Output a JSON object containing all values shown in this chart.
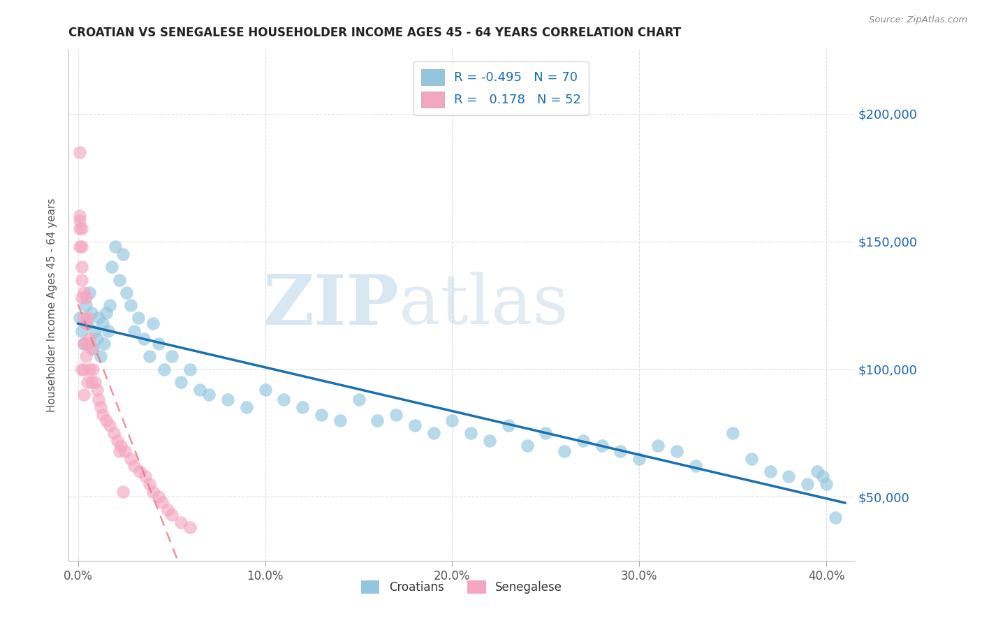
{
  "title": "CROATIAN VS SENEGALESE HOUSEHOLDER INCOME AGES 45 - 64 YEARS CORRELATION CHART",
  "source": "Source: ZipAtlas.com",
  "ylabel": "Householder Income Ages 45 - 64 years",
  "xlabel_ticks": [
    "0.0%",
    "10.0%",
    "20.0%",
    "30.0%",
    "40.0%"
  ],
  "xlabel_vals": [
    0.0,
    0.1,
    0.2,
    0.3,
    0.4
  ],
  "ylabel_ticks": [
    50000,
    100000,
    150000,
    200000
  ],
  "ylabel_labels": [
    "$50,000",
    "$100,000",
    "$150,000",
    "$200,000"
  ],
  "ylim": [
    25000,
    225000
  ],
  "xlim": [
    -0.005,
    0.415
  ],
  "croatian_color": "#92c5de",
  "senegalese_color": "#f4a6c0",
  "trend_croatian_color": "#1a6faf",
  "trend_senegalese_color": "#e8717a",
  "R_croatian": -0.495,
  "N_croatian": 70,
  "R_senegalese": 0.178,
  "N_senegalese": 52,
  "watermark_zip": "ZIP",
  "watermark_atlas": "atlas",
  "background_color": "#ffffff",
  "croatian_x": [
    0.001,
    0.002,
    0.003,
    0.004,
    0.005,
    0.006,
    0.007,
    0.008,
    0.009,
    0.01,
    0.011,
    0.012,
    0.013,
    0.014,
    0.015,
    0.016,
    0.017,
    0.018,
    0.02,
    0.022,
    0.024,
    0.026,
    0.028,
    0.03,
    0.032,
    0.035,
    0.038,
    0.04,
    0.043,
    0.046,
    0.05,
    0.055,
    0.06,
    0.065,
    0.07,
    0.08,
    0.09,
    0.1,
    0.11,
    0.12,
    0.13,
    0.14,
    0.15,
    0.16,
    0.17,
    0.18,
    0.19,
    0.2,
    0.21,
    0.22,
    0.23,
    0.24,
    0.25,
    0.26,
    0.27,
    0.28,
    0.29,
    0.3,
    0.31,
    0.32,
    0.33,
    0.35,
    0.36,
    0.37,
    0.38,
    0.39,
    0.395,
    0.398,
    0.4,
    0.405
  ],
  "croatian_y": [
    120000,
    115000,
    110000,
    125000,
    118000,
    130000,
    122000,
    108000,
    115000,
    112000,
    120000,
    105000,
    118000,
    110000,
    122000,
    115000,
    125000,
    140000,
    148000,
    135000,
    145000,
    130000,
    125000,
    115000,
    120000,
    112000,
    105000,
    118000,
    110000,
    100000,
    105000,
    95000,
    100000,
    92000,
    90000,
    88000,
    85000,
    92000,
    88000,
    85000,
    82000,
    80000,
    88000,
    80000,
    82000,
    78000,
    75000,
    80000,
    75000,
    72000,
    78000,
    70000,
    75000,
    68000,
    72000,
    70000,
    68000,
    65000,
    70000,
    68000,
    62000,
    75000,
    65000,
    60000,
    58000,
    55000,
    60000,
    58000,
    55000,
    42000
  ],
  "senegalese_x": [
    0.001,
    0.001,
    0.001,
    0.001,
    0.001,
    0.002,
    0.002,
    0.002,
    0.002,
    0.002,
    0.002,
    0.003,
    0.003,
    0.003,
    0.003,
    0.003,
    0.004,
    0.004,
    0.004,
    0.005,
    0.005,
    0.005,
    0.006,
    0.006,
    0.007,
    0.007,
    0.008,
    0.009,
    0.01,
    0.011,
    0.012,
    0.013,
    0.015,
    0.017,
    0.019,
    0.021,
    0.023,
    0.025,
    0.028,
    0.03,
    0.033,
    0.036,
    0.038,
    0.04,
    0.043,
    0.045,
    0.048,
    0.05,
    0.055,
    0.06,
    0.022,
    0.024
  ],
  "senegalese_y": [
    185000,
    160000,
    158000,
    155000,
    148000,
    155000,
    148000,
    140000,
    135000,
    128000,
    100000,
    130000,
    120000,
    110000,
    100000,
    90000,
    128000,
    118000,
    105000,
    120000,
    110000,
    95000,
    112000,
    100000,
    108000,
    95000,
    100000,
    95000,
    92000,
    88000,
    85000,
    82000,
    80000,
    78000,
    75000,
    72000,
    70000,
    68000,
    65000,
    62000,
    60000,
    58000,
    55000,
    52000,
    50000,
    48000,
    45000,
    43000,
    40000,
    38000,
    68000,
    52000
  ],
  "sn_trendline_x_start": 0.0,
  "sn_trendline_x_end": 0.415,
  "cr_trendline_x_start": 0.0,
  "cr_trendline_x_end": 0.41
}
